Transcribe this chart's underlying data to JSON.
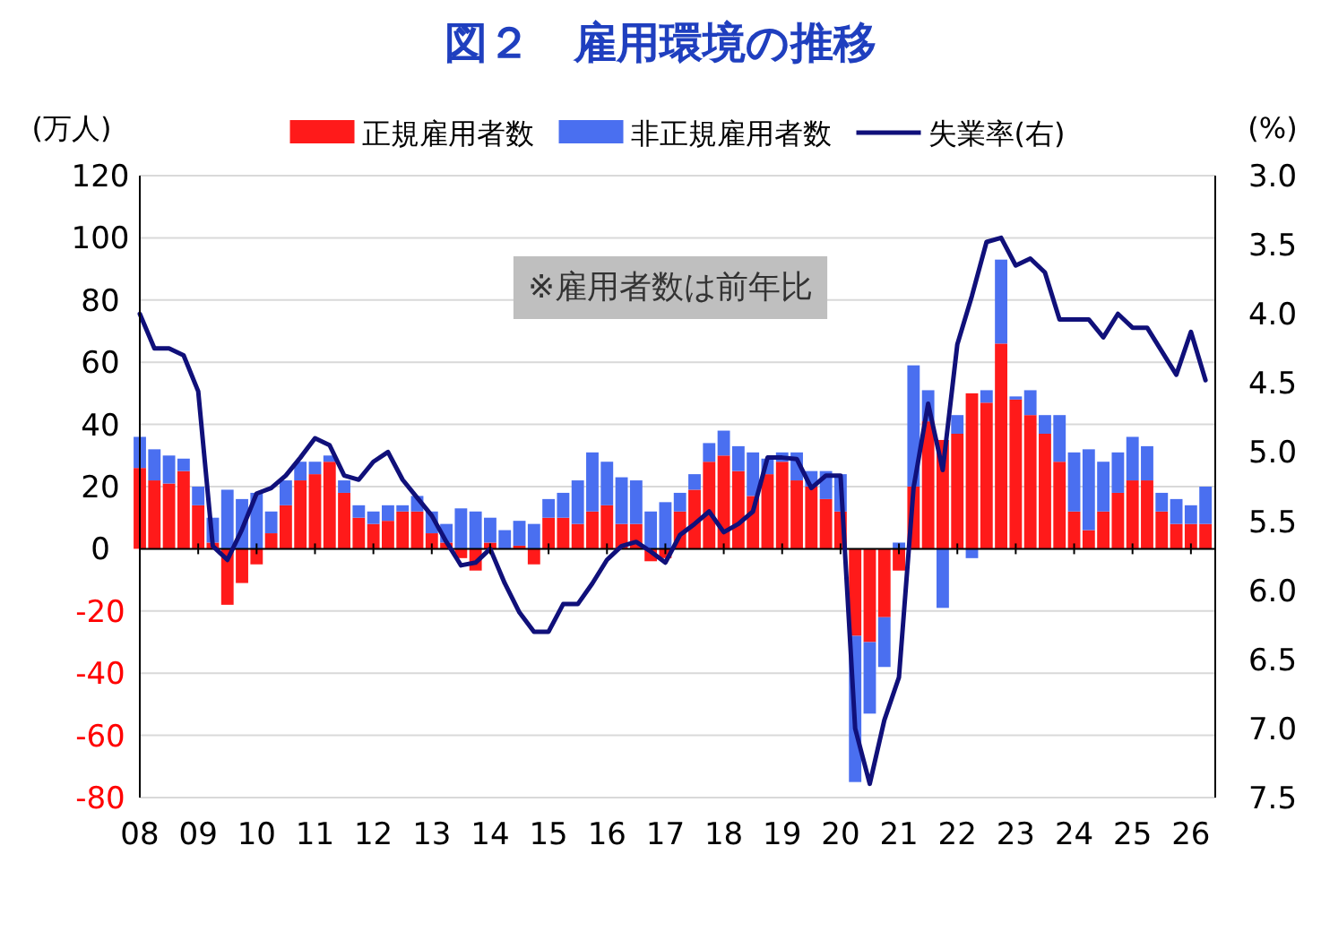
{
  "chart_data": {
    "type": "bar",
    "title": "図２　雇用環境の推移",
    "ylabel": "(万人)",
    "y2label": "(%)",
    "stacked": true,
    "grid": "y",
    "legend": "top",
    "annotations": [
      "※雇用者数は前年比"
    ],
    "x": [
      "2008-01",
      "2008-04",
      "2008-07",
      "2008-10",
      "2009-01",
      "2009-04",
      "2009-07",
      "2009-10",
      "2010-01",
      "2010-04",
      "2010-07",
      "2010-10",
      "2011-01",
      "2011-04",
      "2011-07",
      "2011-10",
      "2012-01",
      "2012-04",
      "2012-07",
      "2012-10",
      "2013-01",
      "2013-04",
      "2013-07",
      "2013-10",
      "2014-01",
      "2014-04",
      "2014-07",
      "2014-10",
      "2015-01",
      "2015-04",
      "2015-07",
      "2015-10",
      "2016-01",
      "2016-04",
      "2016-07",
      "2016-10",
      "2017-01",
      "2017-04",
      "2017-07",
      "2017-10",
      "2018-01",
      "2018-04",
      "2018-07",
      "2018-10",
      "2019-01",
      "2019-04",
      "2019-07",
      "2019-10",
      "2020-01",
      "2020-04",
      "2020-07",
      "2020-10",
      "2021-01",
      "2021-04",
      "2021-07",
      "2021-10",
      "2022-01",
      "2022-04",
      "2022-07",
      "2022-10",
      "2023-01",
      "2023-04",
      "2023-07",
      "2023-10",
      "2024-01",
      "2024-04",
      "2024-07",
      "2024-10",
      "2025-01",
      "2025-04",
      "2025-07",
      "2025-10",
      "2026-01",
      "2026-04"
    ],
    "series": [
      {
        "name": "正規雇用者数",
        "color": "#ff1a1a",
        "values": [
          26,
          22,
          21,
          25,
          14,
          2,
          -18,
          -11,
          -5,
          5,
          14,
          22,
          24,
          28,
          18,
          10,
          8,
          9,
          12,
          12,
          5,
          2,
          -3,
          -7,
          2,
          0,
          1,
          -5,
          10,
          10,
          8,
          12,
          14,
          8,
          8,
          -4,
          -3,
          12,
          19,
          28,
          30,
          25,
          17,
          24,
          28,
          22,
          20,
          16,
          12,
          -28,
          -30,
          -22,
          -7,
          20,
          41,
          35,
          37,
          50,
          47,
          66,
          48,
          43,
          37,
          28,
          12,
          6,
          12,
          18,
          22,
          22,
          12,
          8,
          8,
          8
        ]
      },
      {
        "name": "非正規雇用者数",
        "color": "#4a6ff0",
        "values": [
          10,
          10,
          9,
          4,
          6,
          8,
          19,
          16,
          18,
          7,
          8,
          6,
          4,
          2,
          4,
          4,
          4,
          5,
          2,
          5,
          7,
          6,
          13,
          12,
          8,
          6,
          8,
          8,
          6,
          8,
          14,
          19,
          14,
          15,
          14,
          12,
          15,
          6,
          5,
          6,
          8,
          8,
          14,
          5,
          3,
          9,
          5,
          9,
          12,
          -47,
          -23,
          -16,
          2,
          39,
          10,
          -19,
          6,
          -3,
          4,
          27,
          1,
          8,
          6,
          15,
          19,
          26,
          16,
          13,
          14,
          11,
          6,
          8,
          6,
          12
        ]
      },
      {
        "name": "失業率(右)",
        "type": "line",
        "axis": "y2",
        "color": "#10107a",
        "values": [
          4.0,
          4.25,
          4.25,
          4.3,
          4.56,
          5.68,
          5.78,
          5.56,
          5.3,
          5.26,
          5.17,
          5.04,
          4.9,
          4.95,
          5.17,
          5.2,
          5.07,
          5.0,
          5.2,
          5.33,
          5.46,
          5.65,
          5.82,
          5.8,
          5.7,
          5.95,
          6.16,
          6.3,
          6.3,
          6.1,
          6.1,
          5.95,
          5.78,
          5.68,
          5.65,
          5.72,
          5.8,
          5.6,
          5.52,
          5.43,
          5.58,
          5.52,
          5.43,
          5.04,
          5.04,
          5.05,
          5.26,
          5.17,
          5.17,
          7.0,
          7.4,
          6.94,
          6.63,
          5.26,
          4.65,
          5.13,
          4.22,
          3.87,
          3.48,
          3.45,
          3.65,
          3.6,
          3.7,
          4.04,
          4.04,
          4.04,
          4.17,
          4.0,
          4.1,
          4.1,
          4.27,
          4.44,
          4.13,
          4.48
        ]
      }
    ],
    "xlim": [
      "2008-01",
      "2026-06"
    ],
    "xticks": [
      {
        "value": "2008-01",
        "label": "08"
      },
      {
        "value": "2009-01",
        "label": "09"
      },
      {
        "value": "2010-01",
        "label": "10"
      },
      {
        "value": "2011-01",
        "label": "11"
      },
      {
        "value": "2012-01",
        "label": "12"
      },
      {
        "value": "2013-01",
        "label": "13"
      },
      {
        "value": "2014-01",
        "label": "14"
      },
      {
        "value": "2015-01",
        "label": "15"
      },
      {
        "value": "2016-01",
        "label": "16"
      },
      {
        "value": "2017-01",
        "label": "17"
      },
      {
        "value": "2018-01",
        "label": "18"
      },
      {
        "value": "2019-01",
        "label": "19"
      },
      {
        "value": "2020-01",
        "label": "20"
      },
      {
        "value": "2021-01",
        "label": "21"
      },
      {
        "value": "2022-01",
        "label": "22"
      },
      {
        "value": "2023-01",
        "label": "23"
      },
      {
        "value": "2024-01",
        "label": "24"
      },
      {
        "value": "2025-01",
        "label": "25"
      },
      {
        "value": "2026-01",
        "label": "26"
      }
    ],
    "ylim": [
      -80,
      120
    ],
    "yticks": [
      -80,
      -60,
      -40,
      -20,
      0,
      20,
      40,
      60,
      80,
      100,
      120
    ],
    "y2lim": [
      7.5,
      3.0
    ],
    "y2ticks": [
      {
        "value": 3,
        "label": "3.0"
      },
      3.5,
      {
        "value": 4,
        "label": "4.0"
      },
      4.5,
      {
        "value": 5,
        "label": "5.0"
      },
      5.5,
      {
        "value": 6,
        "label": "6.0"
      },
      6.5,
      {
        "value": 7,
        "label": "7.0"
      },
      7.5
    ]
  }
}
